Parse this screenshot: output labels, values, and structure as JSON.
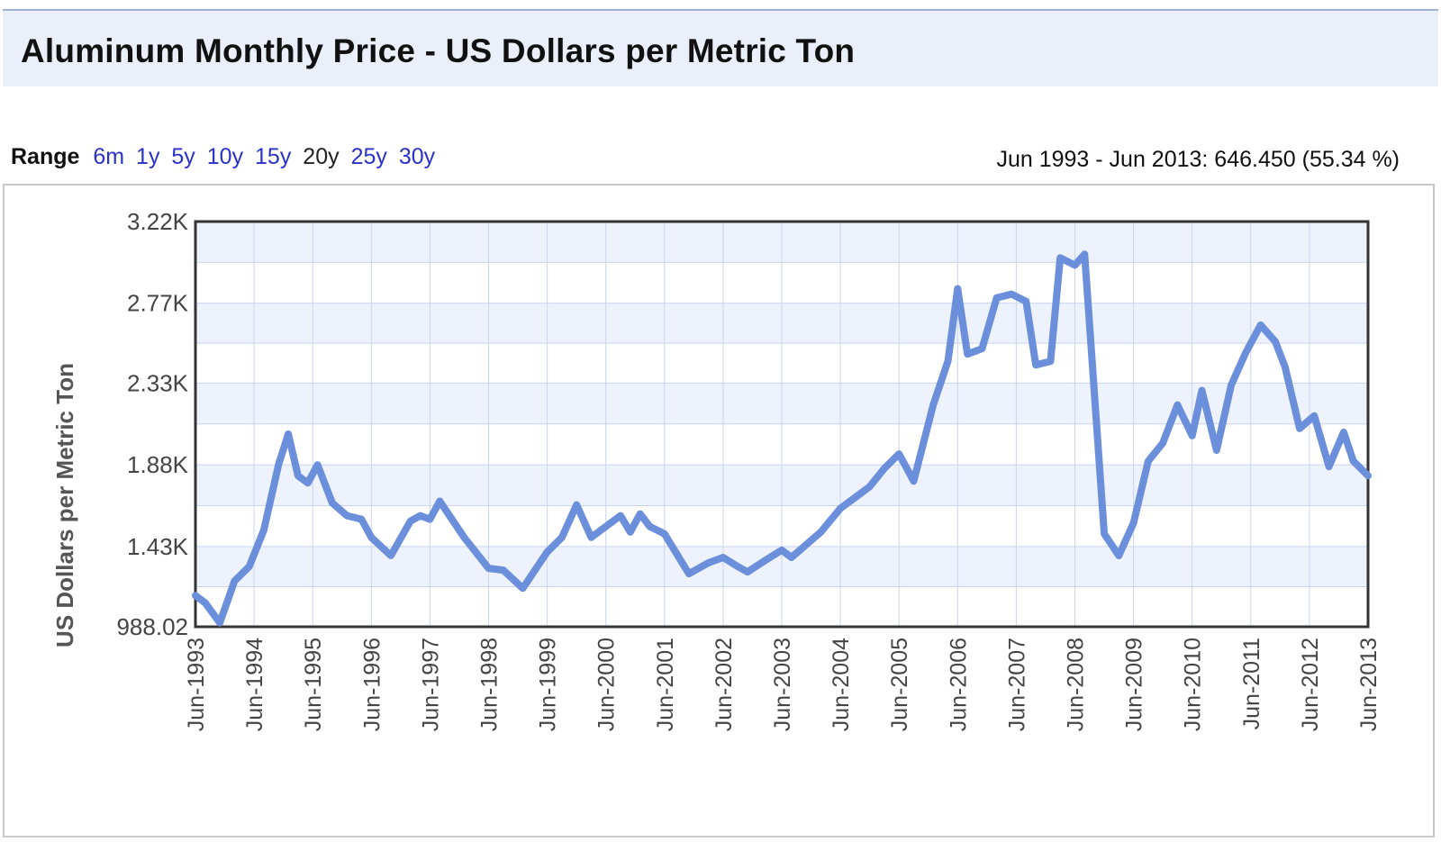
{
  "header": {
    "title": "Aluminum Monthly Price - US Dollars per Metric Ton"
  },
  "range": {
    "label": "Range",
    "options": [
      "6m",
      "1y",
      "5y",
      "10y",
      "15y",
      "20y",
      "25y",
      "30y"
    ],
    "selected": "20y"
  },
  "summary": "Jun 1993 - Jun 2013: 646.450 (55.34 %)",
  "colors": {
    "line": "#6b8fdb",
    "plot_bg_band": "#eef2fc",
    "grid": "#c9d4ee",
    "link": "#2a32c9"
  },
  "chart_data": {
    "type": "line",
    "title": "",
    "ylabel": "US Dollars per Metric Ton",
    "xlabel": "",
    "ylim": [
      988.02,
      3220
    ],
    "yticks": [
      988.02,
      1430,
      1880,
      2330,
      2770,
      3220
    ],
    "ytick_labels": [
      "988.02",
      "1.43K",
      "1.88K",
      "2.33K",
      "2.77K",
      "3.22K"
    ],
    "xlim": [
      "1993-06",
      "2013-06"
    ],
    "xtick_labels": [
      "Jun-1993",
      "Jun-1994",
      "Jun-1995",
      "Jun-1996",
      "Jun-1997",
      "Jun-1998",
      "Jun-1999",
      "Jun-2000",
      "Jun-2001",
      "Jun-2002",
      "Jun-2003",
      "Jun-2004",
      "Jun-2005",
      "Jun-2006",
      "Jun-2007",
      "Jun-2008",
      "Jun-2009",
      "Jun-2010",
      "Jun-2011",
      "Jun-2012",
      "Jun-2013"
    ],
    "grid": true,
    "series": [
      {
        "values": [
          [
            "1993-06",
            1160
          ],
          [
            "1993-08",
            1120
          ],
          [
            "1993-11",
            1010
          ],
          [
            "1994-02",
            1240
          ],
          [
            "1994-05",
            1320
          ],
          [
            "1994-08",
            1520
          ],
          [
            "1994-11",
            1880
          ],
          [
            "1995-01",
            2050
          ],
          [
            "1995-03",
            1820
          ],
          [
            "1995-05",
            1780
          ],
          [
            "1995-07",
            1880
          ],
          [
            "1995-10",
            1670
          ],
          [
            "1996-01",
            1600
          ],
          [
            "1996-04",
            1580
          ],
          [
            "1996-06",
            1480
          ],
          [
            "1996-10",
            1380
          ],
          [
            "1997-02",
            1570
          ],
          [
            "1997-04",
            1600
          ],
          [
            "1997-06",
            1580
          ],
          [
            "1997-08",
            1680
          ],
          [
            "1997-10",
            1600
          ],
          [
            "1998-01",
            1480
          ],
          [
            "1998-06",
            1310
          ],
          [
            "1998-09",
            1300
          ],
          [
            "1999-01",
            1200
          ],
          [
            "1999-03",
            1280
          ],
          [
            "1999-06",
            1400
          ],
          [
            "1999-09",
            1480
          ],
          [
            "1999-12",
            1660
          ],
          [
            "2000-03",
            1480
          ],
          [
            "2000-06",
            1540
          ],
          [
            "2000-09",
            1600
          ],
          [
            "2000-11",
            1510
          ],
          [
            "2001-01",
            1610
          ],
          [
            "2001-03",
            1540
          ],
          [
            "2001-06",
            1500
          ],
          [
            "2001-11",
            1280
          ],
          [
            "2002-03",
            1340
          ],
          [
            "2002-06",
            1370
          ],
          [
            "2002-09",
            1320
          ],
          [
            "2002-11",
            1290
          ],
          [
            "2003-03",
            1360
          ],
          [
            "2003-06",
            1410
          ],
          [
            "2003-08",
            1370
          ],
          [
            "2003-11",
            1440
          ],
          [
            "2004-02",
            1510
          ],
          [
            "2004-06",
            1640
          ],
          [
            "2004-09",
            1700
          ],
          [
            "2004-12",
            1760
          ],
          [
            "2005-03",
            1860
          ],
          [
            "2005-06",
            1940
          ],
          [
            "2005-09",
            1790
          ],
          [
            "2006-01",
            2210
          ],
          [
            "2006-04",
            2450
          ],
          [
            "2006-06",
            2850
          ],
          [
            "2006-08",
            2490
          ],
          [
            "2006-11",
            2520
          ],
          [
            "2007-02",
            2800
          ],
          [
            "2007-05",
            2820
          ],
          [
            "2007-08",
            2780
          ],
          [
            "2007-10",
            2430
          ],
          [
            "2008-01",
            2450
          ],
          [
            "2008-03",
            3020
          ],
          [
            "2008-06",
            2980
          ],
          [
            "2008-08",
            3040
          ],
          [
            "2008-12",
            1500
          ],
          [
            "2009-03",
            1380
          ],
          [
            "2009-06",
            1560
          ],
          [
            "2009-09",
            1900
          ],
          [
            "2009-12",
            2000
          ],
          [
            "2010-03",
            2210
          ],
          [
            "2010-06",
            2040
          ],
          [
            "2010-08",
            2290
          ],
          [
            "2010-11",
            1960
          ],
          [
            "2011-02",
            2320
          ],
          [
            "2011-05",
            2500
          ],
          [
            "2011-08",
            2650
          ],
          [
            "2011-11",
            2560
          ],
          [
            "2012-01",
            2420
          ],
          [
            "2012-04",
            2080
          ],
          [
            "2012-07",
            2150
          ],
          [
            "2012-10",
            1870
          ],
          [
            "2013-01",
            2060
          ],
          [
            "2013-03",
            1900
          ],
          [
            "2013-06",
            1820
          ]
        ]
      }
    ]
  }
}
